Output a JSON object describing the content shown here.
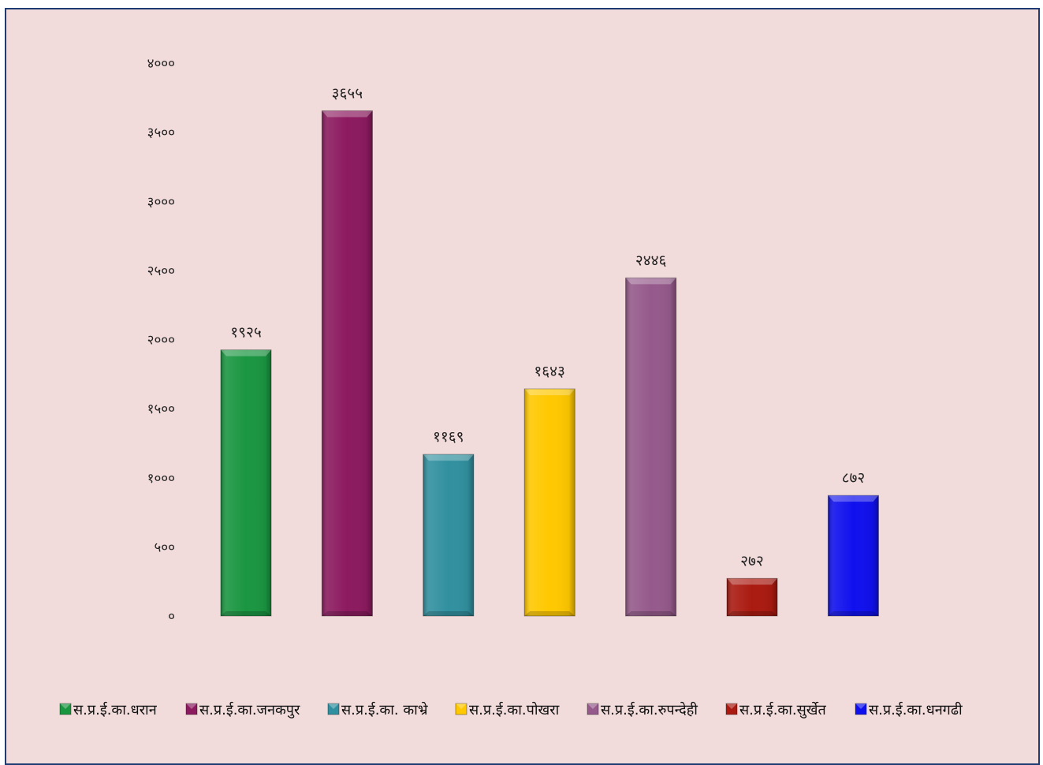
{
  "chart_data": {
    "type": "bar",
    "title": "",
    "xlabel": "",
    "ylabel": "",
    "ylim": [
      0,
      4000
    ],
    "y_ticks": [
      0,
      500,
      1000,
      1500,
      2000,
      2500,
      3000,
      3500,
      4000
    ],
    "y_tick_labels": [
      "०",
      "५००",
      "१०००",
      "१५००",
      "२०००",
      "२५००",
      "३०००",
      "३५००",
      "४०००"
    ],
    "grid": false,
    "legend_position": "bottom",
    "categories": [
      "स.प्र.ई.का.धरान",
      "स.प्र.ई.का.जनकपुर",
      "स.प्र.ई.का. काभ्रे",
      "स.प्र.ई.का.पोखरा",
      "स.प्र.ई.का.रुपन्देही",
      "स.प्र.ई.का.सुर्खेत",
      "स.प्र.ई.का.धनगढी"
    ],
    "values": [
      1925,
      3655,
      1169,
      1643,
      2446,
      272,
      872
    ],
    "data_labels": [
      "१९२५",
      "३६५५",
      "११६९",
      "१६४३",
      "२४४६",
      "२७२",
      "८७२"
    ],
    "colors": [
      "#1a9641",
      "#8c1a5f",
      "#31909f",
      "#ffc800",
      "#955a8b",
      "#aa1a10",
      "#1010ee"
    ],
    "background_color": "#f2dcdb",
    "border_color": "#1f3b73"
  }
}
